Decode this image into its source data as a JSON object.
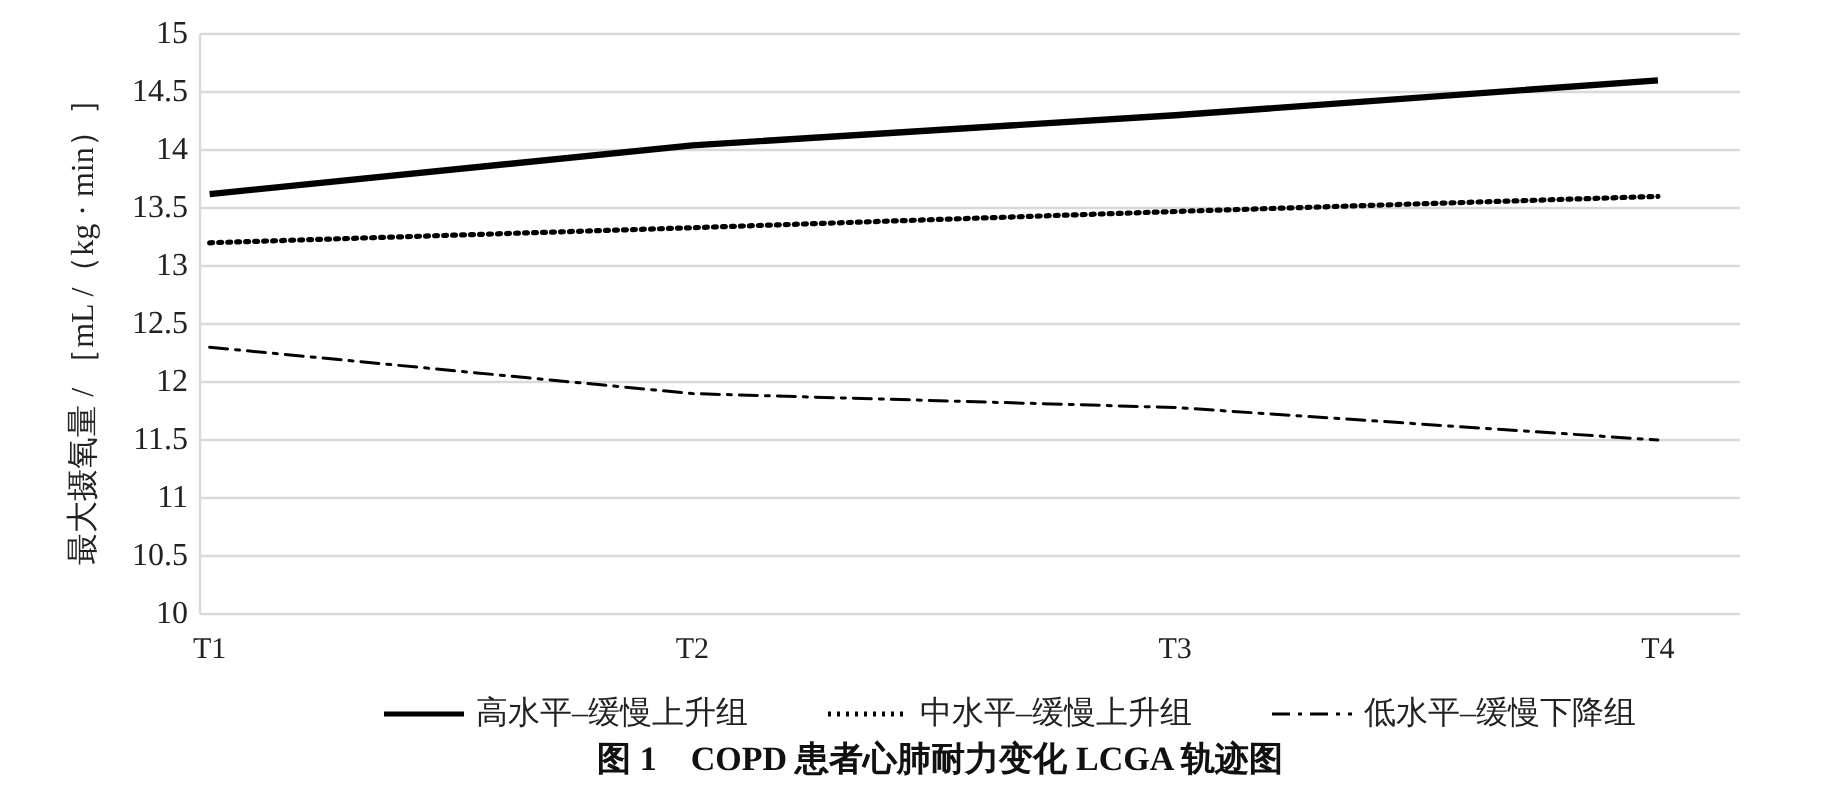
{
  "chart_data": {
    "type": "line",
    "title": "图 1　COPD 患者心肺耐力变化 LCGA 轨迹图",
    "ylabel": "最大摄氧量 / ［mL /（kg · min）］",
    "categories": [
      "T1",
      "T2",
      "T3",
      "T4"
    ],
    "series": [
      {
        "name": "高水平–缓慢上升组",
        "color": "#000000",
        "line_style": "solid",
        "values": [
          13.62,
          14.04,
          14.3,
          14.6
        ]
      },
      {
        "name": "中水平–缓慢上升组",
        "color": "#000000",
        "line_style": "dotted",
        "values": [
          13.2,
          13.33,
          13.47,
          13.6
        ]
      },
      {
        "name": "低水平–缓慢下降组",
        "color": "#000000",
        "line_style": "dashdot",
        "values": [
          12.3,
          11.9,
          11.78,
          11.5
        ]
      }
    ],
    "ylim": [
      10,
      15
    ],
    "yticks": [
      10,
      10.5,
      11,
      11.5,
      12,
      12.5,
      13,
      13.5,
      14,
      14.5,
      15
    ],
    "grid": "y",
    "legend": "bottom"
  }
}
